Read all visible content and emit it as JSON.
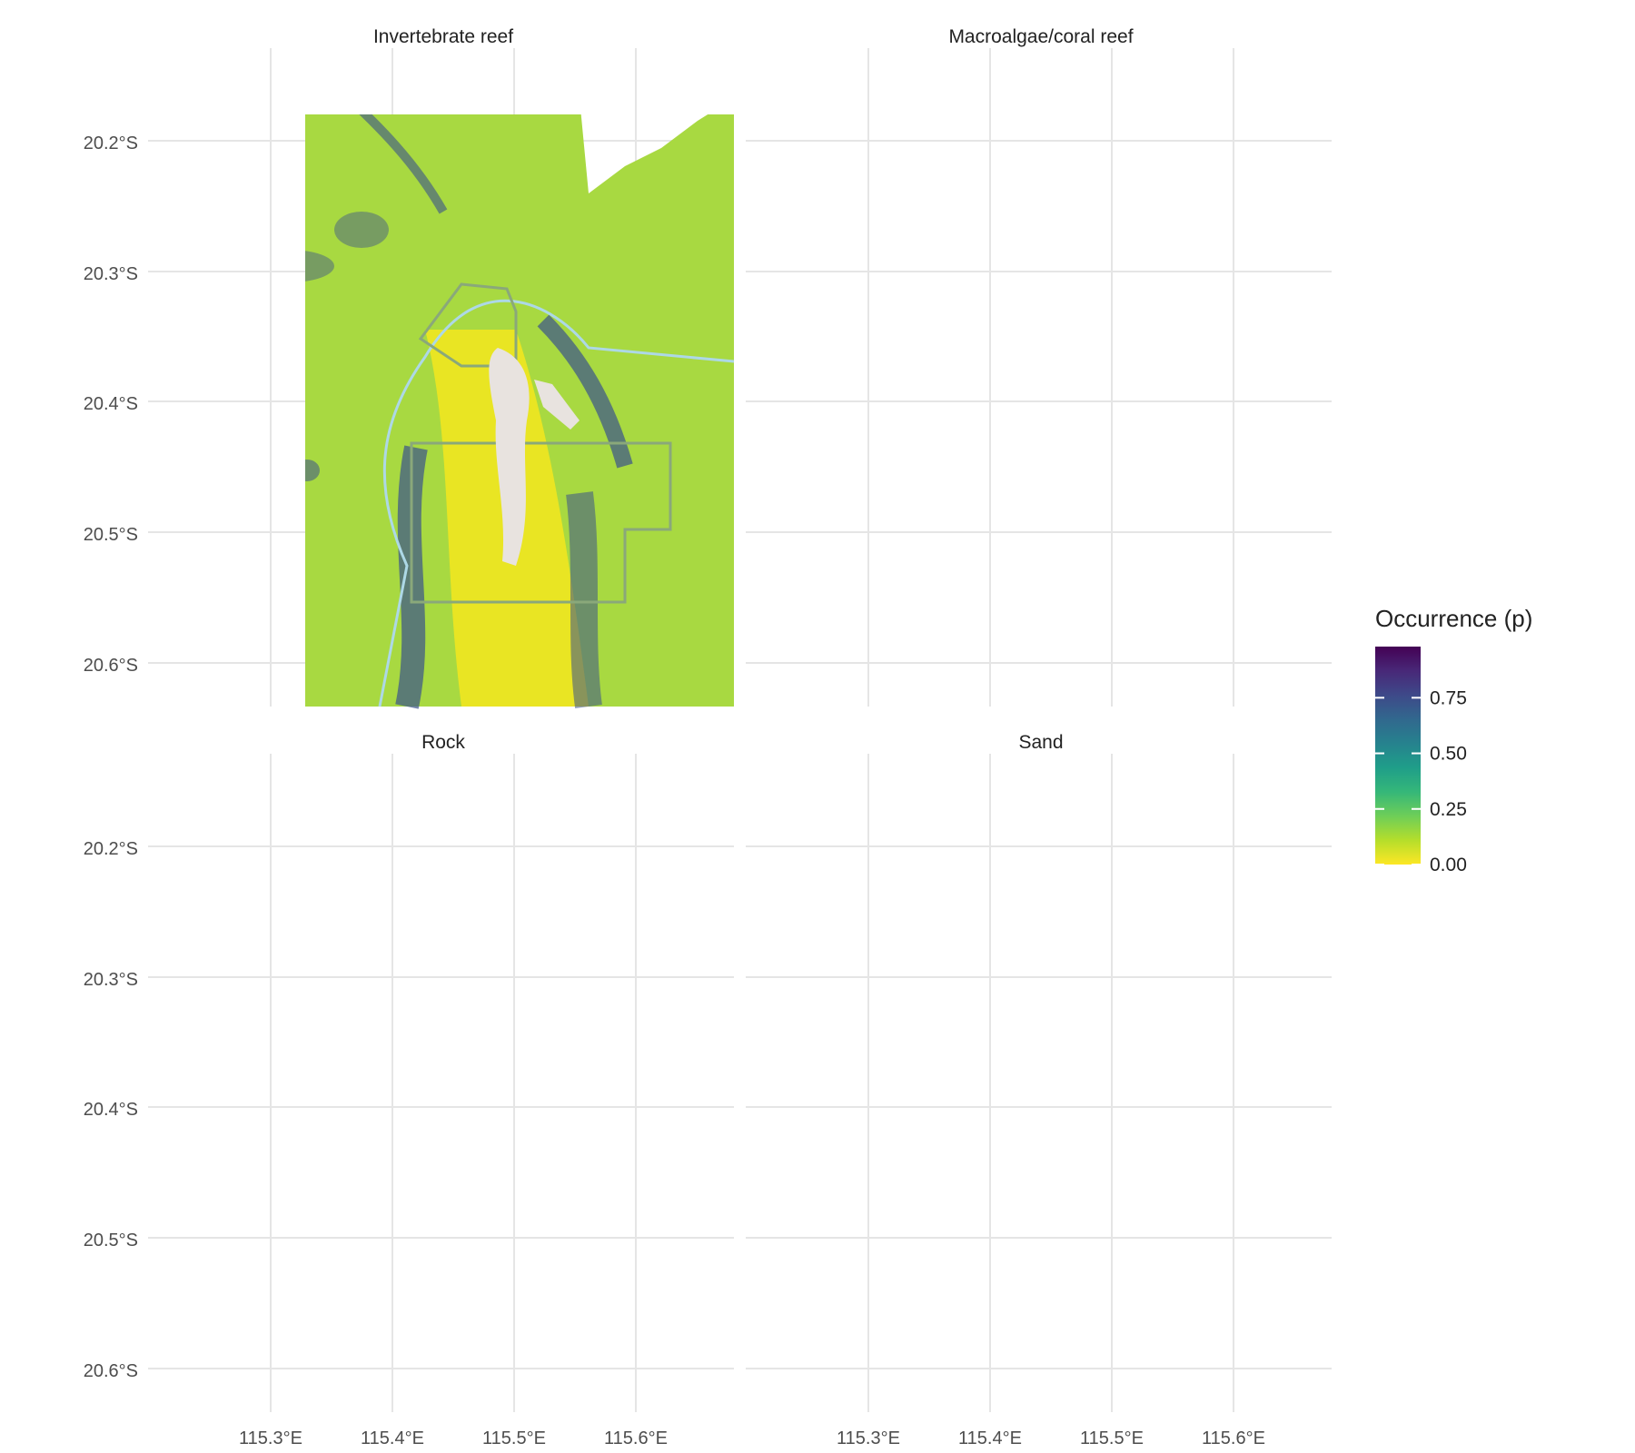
{
  "figure": {
    "panels": [
      {
        "id": "invertebrate",
        "title": "Invertebrate reef",
        "base": "#a8d941",
        "hot": "#3b528b",
        "center": "#f4e61e"
      },
      {
        "id": "macroalgae",
        "title": "Macroalgae/coral reef",
        "base": "#e9e51e",
        "hot": "#2a788e",
        "center": "#f0e61e"
      },
      {
        "id": "rock",
        "title": "Rock",
        "base": "#e6e21e",
        "hot": "#35a8a0",
        "center": "#d8e21f"
      },
      {
        "id": "sand",
        "title": "Sand",
        "base": "#3b1c63",
        "hot": "#22a884",
        "center": "#3b0f70"
      }
    ],
    "y_axis_labels": [
      "20.2°S",
      "20.3°S",
      "20.4°S",
      "20.5°S",
      "20.6°S"
    ],
    "x_axis_labels": [
      "115.3°E",
      "115.4°E",
      "115.5°E",
      "115.6°E"
    ],
    "colors": {
      "boundary_line": "#add8e6",
      "zone_outline": "#8aa87a",
      "island": "#e8e3df",
      "grid": "#e5e5e5"
    }
  },
  "legend": {
    "title": "Occurrence (p)",
    "ticks": [
      "0.75",
      "0.50",
      "0.25",
      "0.00"
    ],
    "tick_values": [
      0.75,
      0.5,
      0.25,
      0.0
    ],
    "colorscale": [
      "#fde725",
      "#b5de2b",
      "#6ece58",
      "#35b779",
      "#1f9e89",
      "#26828e",
      "#31688e",
      "#3e4989",
      "#482878",
      "#440154"
    ]
  }
}
